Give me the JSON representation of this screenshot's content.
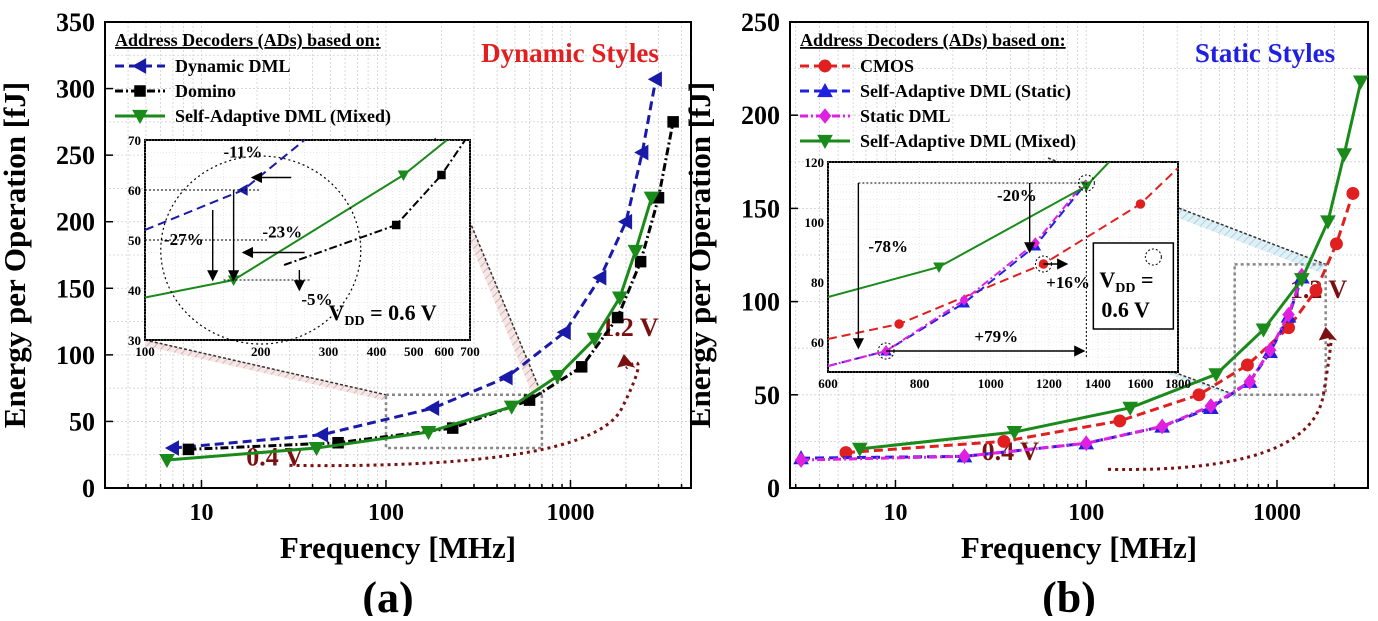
{
  "chart_data": [
    {
      "type": "line",
      "subfigure_label": "(a)",
      "xlabel": "Frequency [MHz]",
      "ylabel": "Energy per Operation [fJ]",
      "xscale": "log",
      "xlim": [
        3,
        4500
      ],
      "ylim": [
        0,
        350
      ],
      "xticks": [
        10,
        100,
        1000
      ],
      "xtick_labels": [
        "10",
        "100",
        "1000"
      ],
      "yticks": [
        0,
        50,
        100,
        150,
        200,
        250,
        300,
        350
      ],
      "ytick_labels": [
        "0",
        "50",
        "100",
        "150",
        "200",
        "250",
        "300",
        "350"
      ],
      "grid": true,
      "style_title": "Dynamic Styles",
      "style_title_color": "#e02020",
      "legend_title": "Address Decoders (ADs) based on:",
      "legend_position": "top-left",
      "series": [
        {
          "name": "Dynamic DML",
          "color": "#1a1aa8",
          "dash": "dash",
          "marker": "triangle-left",
          "x": [
            7,
            45,
            180,
            450,
            930,
            1450,
            2000,
            2450,
            2900
          ],
          "y": [
            30,
            40,
            60,
            83,
            117,
            158,
            200,
            252,
            307
          ]
        },
        {
          "name": "Domino",
          "color": "#000000",
          "dash": "dashdot",
          "marker": "square",
          "x": [
            8.5,
            55,
            230,
            600,
            1150,
            1800,
            2400,
            3000,
            3600
          ],
          "y": [
            29,
            34,
            45,
            66,
            91,
            128,
            170,
            218,
            275
          ]
        },
        {
          "name": "Self-Adaptive DML (Mixed)",
          "color": "#1a8a1a",
          "dash": "solid",
          "marker": "triangle-down",
          "x": [
            6.5,
            42,
            170,
            480,
            850,
            1350,
            1850,
            2250,
            2750
          ],
          "y": [
            21,
            30,
            42,
            61,
            84,
            112,
            143,
            178,
            218
          ]
        }
      ],
      "annotations": [
        {
          "text": "1.2 V",
          "x": 2100,
          "y": 114,
          "color": "#7a1010"
        },
        {
          "text": "0.4 V",
          "x": 25,
          "y": 17,
          "color": "#7a1010"
        }
      ],
      "zoom_box": {
        "xlim": [
          100,
          700
        ],
        "ylim": [
          30,
          70
        ]
      },
      "inset": {
        "xscale": "log",
        "xlim": [
          100,
          700
        ],
        "ylim": [
          30,
          70
        ],
        "xticks": [
          100,
          200,
          300,
          400,
          500,
          600,
          700
        ],
        "xtick_labels": [
          "100",
          "200",
          "300",
          "400",
          "500",
          "600",
          "700"
        ],
        "yticks": [
          30,
          40,
          50,
          60,
          70
        ],
        "ytick_labels": [
          "30",
          "40",
          "50",
          "60",
          "70"
        ],
        "series": [
          {
            "name": "Dynamic DML",
            "x": [
              100,
              180,
              260
            ],
            "y": [
              52,
              60,
              70
            ]
          },
          {
            "name": "Domino",
            "x": [
              230,
              450,
              590,
              680
            ],
            "y": [
              45,
              53,
              63,
              70
            ]
          },
          {
            "name": "Self-Adaptive DML (Mixed)",
            "x": [
              100,
              170,
              470,
              610
            ],
            "y": [
              38.5,
              42,
              63,
              70
            ]
          }
        ],
        "annotations": [
          {
            "text": "-11%",
            "x": 160,
            "y": 65
          },
          {
            "text": "-27%",
            "x": 100,
            "y": 50
          },
          {
            "text": "-23%",
            "x": 200,
            "y": 51
          },
          {
            "text": "-5%",
            "x": 265,
            "y": 40
          },
          {
            "text": "V",
            "subscript": "DD",
            "suffix": " = 0.6 V"
          }
        ]
      }
    },
    {
      "type": "line",
      "subfigure_label": "(b)",
      "xlabel": "Frequency [MHz]",
      "ylabel": "Energy per Operation [fJ]",
      "xscale": "log",
      "xlim": [
        2.8,
        3000
      ],
      "ylim": [
        0,
        250
      ],
      "xticks": [
        10,
        100,
        1000
      ],
      "xtick_labels": [
        "10",
        "100",
        "1000"
      ],
      "yticks": [
        0,
        50,
        100,
        150,
        200,
        250
      ],
      "ytick_labels": [
        "0",
        "50",
        "100",
        "150",
        "200",
        "250"
      ],
      "grid": true,
      "style_title": "Static Styles",
      "style_title_color": "#2020e0",
      "legend_title": "Address Decoders (ADs) based on:",
      "legend_position": "top-left",
      "series": [
        {
          "name": "CMOS",
          "color": "#e02020",
          "dash": "dash",
          "marker": "circle",
          "x": [
            5.5,
            37,
            150,
            390,
            700,
            1150,
            1600,
            2050,
            2500
          ],
          "y": [
            19,
            25,
            36,
            50,
            66,
            86,
            106,
            131,
            158
          ]
        },
        {
          "name": "Self-Adaptive DML (Static)",
          "color": "#2020e0",
          "dash": "dash",
          "marker": "triangle-up",
          "x": [
            3.2,
            23,
            100,
            250,
            450,
            720,
            920,
            1150,
            1350
          ],
          "y": [
            16,
            17,
            24,
            33,
            43,
            57,
            73,
            92,
            113
          ]
        },
        {
          "name": "Static DML",
          "color": "#e020e0",
          "dash": "dashdot",
          "marker": "diamond",
          "x": [
            3.2,
            23,
            100,
            250,
            450,
            720,
            920,
            1150,
            1350
          ],
          "y": [
            15,
            17,
            24,
            33,
            44,
            57,
            74,
            93,
            114
          ]
        },
        {
          "name": "Self-Adaptive DML (Mixed)",
          "color": "#1a8a1a",
          "dash": "solid",
          "marker": "triangle-down",
          "x": [
            6.5,
            42,
            170,
            480,
            850,
            1350,
            1850,
            2250,
            2750
          ],
          "y": [
            21,
            30,
            43,
            61,
            85,
            112,
            143,
            179,
            218
          ]
        }
      ],
      "annotations": [
        {
          "text": "1.2 V",
          "x": 1650,
          "y": 102,
          "color": "#7a1010"
        },
        {
          "text": "0.4 V",
          "x": 40,
          "y": 15,
          "color": "#7a1010"
        }
      ],
      "zoom_box": {
        "xlim": [
          600,
          1800
        ],
        "ylim": [
          50,
          120
        ]
      },
      "inset": {
        "xscale": "log",
        "xlim": [
          600,
          1800
        ],
        "ylim": [
          50,
          120
        ],
        "xticks": [
          600,
          800,
          1000,
          1200,
          1400,
          1600,
          1800
        ],
        "xtick_labels": [
          "600",
          "800",
          "1000",
          "1200",
          "1400",
          "1600",
          "1800"
        ],
        "yticks": [
          60,
          80,
          100,
          120
        ],
        "ytick_labels": [
          "60",
          "80",
          "100",
          "120"
        ],
        "series": [
          {
            "name": "CMOS",
            "x": [
              600,
              750,
              1180,
              1600,
              1800
            ],
            "y": [
              61,
              66,
              86,
              106,
              118
            ]
          },
          {
            "name": "Self-Adaptive DML (Static)",
            "x": [
              600,
              720,
              920,
              1150,
              1350
            ],
            "y": [
              52,
              57,
              73,
              92,
              113
            ]
          },
          {
            "name": "Static DML",
            "x": [
              600,
              720,
              920,
              1150,
              1350
            ],
            "y": [
              52,
              57,
              74,
              93,
              114
            ]
          },
          {
            "name": "Self-Adaptive DML (Mixed)",
            "x": [
              600,
              850,
              1350,
              1450
            ],
            "y": [
              75,
              85,
              112,
              120
            ]
          }
        ],
        "annotations": [
          {
            "text": "-78%",
            "x": 660,
            "y": 90
          },
          {
            "text": "-20%",
            "x": 1020,
            "y": 108
          },
          {
            "text": "+16%",
            "x": 1200,
            "y": 80
          },
          {
            "text": "+79%",
            "x": 900,
            "y": 62
          },
          {
            "text": "V",
            "subscript": "DD",
            "suffix": " =",
            "line2": "0.6 V"
          }
        ]
      }
    }
  ]
}
